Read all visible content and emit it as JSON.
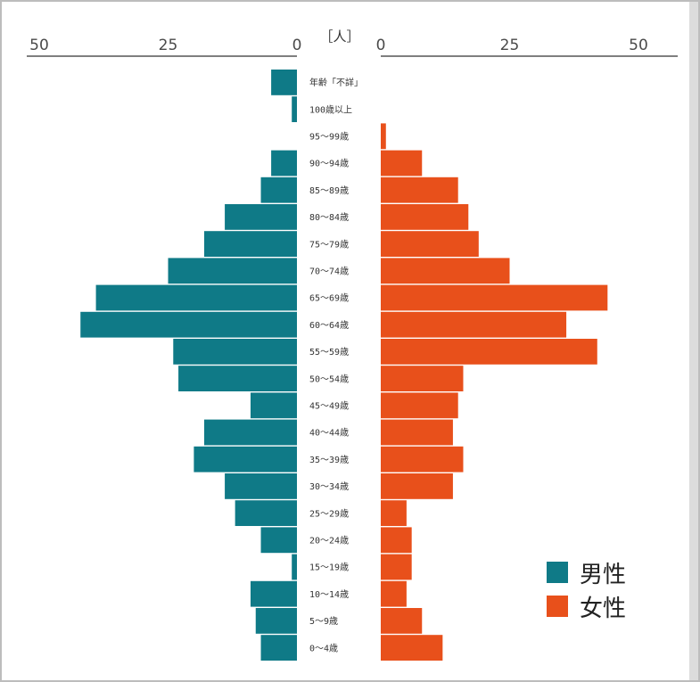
{
  "chart_data": {
    "type": "bar",
    "subtype": "population-pyramid",
    "unit_label": "［人］",
    "axis_ticks": [
      "50",
      "25",
      "0"
    ],
    "axis_ticks_right": [
      "0",
      "25",
      "50"
    ],
    "xlim": [
      0,
      50
    ],
    "categories": [
      "年齢「不詳」",
      "100歳以上",
      "95〜99歳",
      "90〜94歳",
      "85〜89歳",
      "80〜84歳",
      "75〜79歳",
      "70〜74歳",
      "65〜69歳",
      "60〜64歳",
      "55〜59歳",
      "50〜54歳",
      "45〜49歳",
      "40〜44歳",
      "35〜39歳",
      "30〜34歳",
      "25〜29歳",
      "20〜24歳",
      "15〜19歳",
      "10〜14歳",
      "5〜9歳",
      "0〜4歳"
    ],
    "series": [
      {
        "name": "男性",
        "color": "#0f7a87",
        "values": [
          5,
          1,
          0,
          5,
          7,
          14,
          18,
          25,
          39,
          42,
          24,
          23,
          9,
          18,
          20,
          14,
          12,
          7,
          1,
          9,
          8,
          7
        ]
      },
      {
        "name": "女性",
        "color": "#e8501b",
        "values": [
          0,
          0,
          1,
          8,
          15,
          17,
          19,
          25,
          44,
          36,
          42,
          16,
          15,
          14,
          16,
          14,
          5,
          6,
          6,
          5,
          8,
          12
        ]
      }
    ],
    "legend_position": "bottom-right",
    "grid": false
  }
}
